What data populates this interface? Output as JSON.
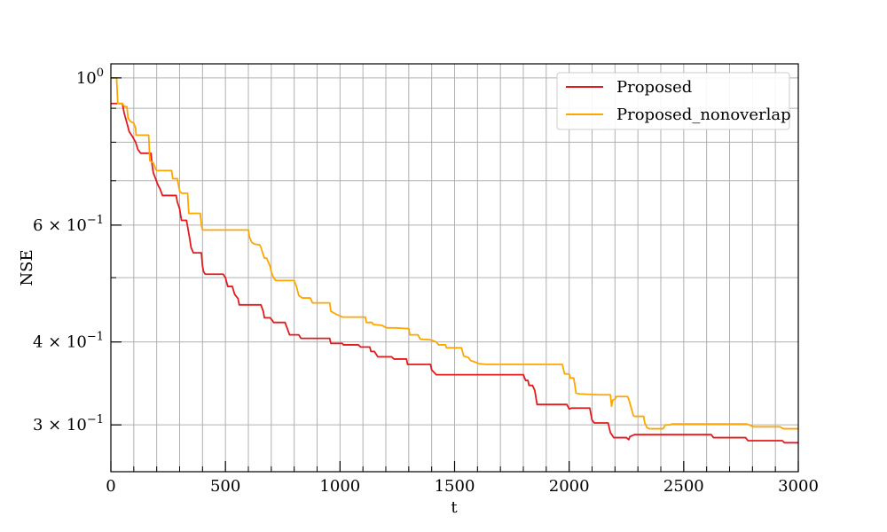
{
  "chart_data": {
    "type": "line",
    "xlabel": "t",
    "ylabel": "NSE",
    "xlim": [
      0,
      3000
    ],
    "ylim": [
      0.255,
      1.05
    ],
    "yscale": "log",
    "grid": true,
    "legend_placement": "top-right",
    "x_ticks": [
      {
        "value": 0,
        "label": "0"
      },
      {
        "value": 500,
        "label": "500"
      },
      {
        "value": 1000,
        "label": "1000"
      },
      {
        "value": 1500,
        "label": "1500"
      },
      {
        "value": 2000,
        "label": "2000"
      },
      {
        "value": 2500,
        "label": "2500"
      },
      {
        "value": 3000,
        "label": "3000"
      }
    ],
    "x_minor_ticks": [
      100,
      200,
      300,
      400,
      600,
      700,
      800,
      900,
      1100,
      1200,
      1300,
      1400,
      1600,
      1700,
      1800,
      1900,
      2100,
      2200,
      2300,
      2400,
      2600,
      2700,
      2800,
      2900
    ],
    "y_major_ticks": [
      {
        "value": 1.0,
        "base": "10",
        "exp": "0",
        "coef": ""
      },
      {
        "value": 0.6,
        "base": "10",
        "exp": "−1",
        "coef": "6 × "
      },
      {
        "value": 0.4,
        "base": "10",
        "exp": "−1",
        "coef": "4 × "
      },
      {
        "value": 0.3,
        "base": "10",
        "exp": "−1",
        "coef": "3 × "
      }
    ],
    "y_minor_ticks": [
      0.9,
      0.8,
      0.7,
      0.5
    ],
    "series": [
      {
        "name": "Proposed",
        "color": "#e41a1c",
        "points": [
          [
            0,
            0.915
          ],
          [
            50,
            0.915
          ],
          [
            58,
            0.885
          ],
          [
            70,
            0.855
          ],
          [
            80,
            0.83
          ],
          [
            95,
            0.815
          ],
          [
            108,
            0.8
          ],
          [
            118,
            0.78
          ],
          [
            130,
            0.77
          ],
          [
            175,
            0.77
          ],
          [
            180,
            0.74
          ],
          [
            185,
            0.72
          ],
          [
            195,
            0.705
          ],
          [
            205,
            0.69
          ],
          [
            215,
            0.68
          ],
          [
            225,
            0.665
          ],
          [
            285,
            0.665
          ],
          [
            290,
            0.65
          ],
          [
            300,
            0.635
          ],
          [
            308,
            0.61
          ],
          [
            330,
            0.61
          ],
          [
            345,
            0.57
          ],
          [
            350,
            0.555
          ],
          [
            360,
            0.545
          ],
          [
            395,
            0.545
          ],
          [
            400,
            0.52
          ],
          [
            405,
            0.51
          ],
          [
            412,
            0.506
          ],
          [
            490,
            0.506
          ],
          [
            500,
            0.5
          ],
          [
            510,
            0.485
          ],
          [
            530,
            0.485
          ],
          [
            540,
            0.472
          ],
          [
            555,
            0.465
          ],
          [
            560,
            0.455
          ],
          [
            655,
            0.455
          ],
          [
            665,
            0.445
          ],
          [
            670,
            0.435
          ],
          [
            695,
            0.435
          ],
          [
            705,
            0.431
          ],
          [
            710,
            0.428
          ],
          [
            760,
            0.428
          ],
          [
            780,
            0.41
          ],
          [
            820,
            0.41
          ],
          [
            830,
            0.405
          ],
          [
            955,
            0.405
          ],
          [
            960,
            0.398
          ],
          [
            1010,
            0.398
          ],
          [
            1015,
            0.396
          ],
          [
            1080,
            0.396
          ],
          [
            1090,
            0.393
          ],
          [
            1130,
            0.393
          ],
          [
            1135,
            0.387
          ],
          [
            1150,
            0.387
          ],
          [
            1165,
            0.38
          ],
          [
            1225,
            0.38
          ],
          [
            1235,
            0.377
          ],
          [
            1290,
            0.377
          ],
          [
            1295,
            0.37
          ],
          [
            1395,
            0.37
          ],
          [
            1400,
            0.363
          ],
          [
            1410,
            0.36
          ],
          [
            1420,
            0.357
          ],
          [
            1800,
            0.357
          ],
          [
            1810,
            0.35
          ],
          [
            1820,
            0.35
          ],
          [
            1825,
            0.344
          ],
          [
            1840,
            0.344
          ],
          [
            1850,
            0.338
          ],
          [
            1860,
            0.322
          ],
          [
            1990,
            0.322
          ],
          [
            2000,
            0.317
          ],
          [
            2010,
            0.318
          ],
          [
            2090,
            0.318
          ],
          [
            2100,
            0.305
          ],
          [
            2110,
            0.302
          ],
          [
            2170,
            0.302
          ],
          [
            2180,
            0.292
          ],
          [
            2195,
            0.287
          ],
          [
            2250,
            0.287
          ],
          [
            2260,
            0.285
          ],
          [
            2265,
            0.288
          ],
          [
            2285,
            0.29
          ],
          [
            2620,
            0.29
          ],
          [
            2630,
            0.287
          ],
          [
            2770,
            0.287
          ],
          [
            2780,
            0.284
          ],
          [
            2930,
            0.284
          ],
          [
            2940,
            0.282
          ],
          [
            3000,
            0.282
          ]
        ]
      },
      {
        "name": "Proposed_nonoverlap",
        "color": "#ffa500",
        "points": [
          [
            0,
            1.0
          ],
          [
            25,
            1.0
          ],
          [
            30,
            0.915
          ],
          [
            50,
            0.915
          ],
          [
            60,
            0.905
          ],
          [
            70,
            0.905
          ],
          [
            75,
            0.87
          ],
          [
            85,
            0.86
          ],
          [
            100,
            0.855
          ],
          [
            108,
            0.84
          ],
          [
            110,
            0.82
          ],
          [
            165,
            0.82
          ],
          [
            170,
            0.75
          ],
          [
            185,
            0.745
          ],
          [
            195,
            0.73
          ],
          [
            200,
            0.725
          ],
          [
            265,
            0.725
          ],
          [
            270,
            0.705
          ],
          [
            290,
            0.705
          ],
          [
            300,
            0.675
          ],
          [
            310,
            0.67
          ],
          [
            335,
            0.67
          ],
          [
            340,
            0.625
          ],
          [
            390,
            0.625
          ],
          [
            395,
            0.6
          ],
          [
            400,
            0.59
          ],
          [
            600,
            0.59
          ],
          [
            605,
            0.575
          ],
          [
            615,
            0.565
          ],
          [
            625,
            0.562
          ],
          [
            650,
            0.56
          ],
          [
            655,
            0.555
          ],
          [
            660,
            0.548
          ],
          [
            670,
            0.535
          ],
          [
            680,
            0.535
          ],
          [
            695,
            0.52
          ],
          [
            700,
            0.51
          ],
          [
            710,
            0.5
          ],
          [
            720,
            0.495
          ],
          [
            800,
            0.495
          ],
          [
            810,
            0.485
          ],
          [
            820,
            0.47
          ],
          [
            835,
            0.466
          ],
          [
            870,
            0.466
          ],
          [
            880,
            0.458
          ],
          [
            955,
            0.458
          ],
          [
            960,
            0.445
          ],
          [
            985,
            0.44
          ],
          [
            1000,
            0.438
          ],
          [
            1010,
            0.436
          ],
          [
            1110,
            0.436
          ],
          [
            1115,
            0.428
          ],
          [
            1140,
            0.428
          ],
          [
            1145,
            0.425
          ],
          [
            1180,
            0.424
          ],
          [
            1205,
            0.42
          ],
          [
            1240,
            0.42
          ],
          [
            1300,
            0.419
          ],
          [
            1305,
            0.41
          ],
          [
            1340,
            0.41
          ],
          [
            1350,
            0.404
          ],
          [
            1395,
            0.403
          ],
          [
            1420,
            0.4
          ],
          [
            1430,
            0.396
          ],
          [
            1460,
            0.396
          ],
          [
            1465,
            0.392
          ],
          [
            1530,
            0.392
          ],
          [
            1540,
            0.381
          ],
          [
            1560,
            0.379
          ],
          [
            1570,
            0.375
          ],
          [
            1590,
            0.373
          ],
          [
            1605,
            0.371
          ],
          [
            1640,
            0.37
          ],
          [
            1970,
            0.37
          ],
          [
            1980,
            0.358
          ],
          [
            2000,
            0.358
          ],
          [
            2005,
            0.353
          ],
          [
            2020,
            0.353
          ],
          [
            2030,
            0.335
          ],
          [
            2045,
            0.334
          ],
          [
            2130,
            0.333
          ],
          [
            2180,
            0.333
          ],
          [
            2185,
            0.32
          ],
          [
            2190,
            0.327
          ],
          [
            2200,
            0.328
          ],
          [
            2205,
            0.331
          ],
          [
            2255,
            0.331
          ],
          [
            2260,
            0.328
          ],
          [
            2280,
            0.31
          ],
          [
            2285,
            0.309
          ],
          [
            2325,
            0.309
          ],
          [
            2330,
            0.302
          ],
          [
            2340,
            0.297
          ],
          [
            2350,
            0.296
          ],
          [
            2410,
            0.296
          ],
          [
            2420,
            0.3
          ],
          [
            2440,
            0.3
          ],
          [
            2450,
            0.301
          ],
          [
            2510,
            0.301
          ],
          [
            2580,
            0.301
          ],
          [
            2775,
            0.301
          ],
          [
            2805,
            0.298
          ],
          [
            2920,
            0.298
          ],
          [
            2935,
            0.296
          ],
          [
            3000,
            0.296
          ]
        ]
      }
    ]
  }
}
